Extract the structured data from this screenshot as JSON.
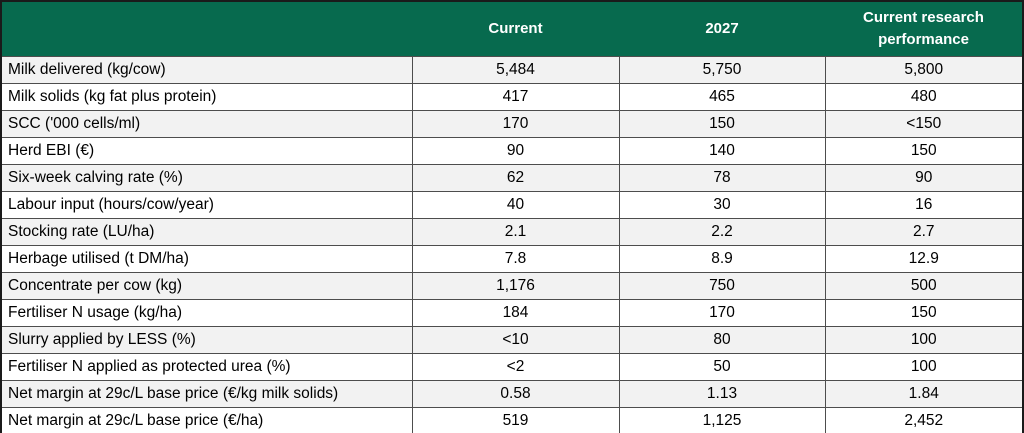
{
  "table": {
    "columns": [
      {
        "label": ""
      },
      {
        "label": "Current"
      },
      {
        "label": "2027"
      },
      {
        "label": "Current research performance"
      }
    ],
    "rows": [
      {
        "label": "Milk delivered (kg/cow)",
        "values": [
          "5,484",
          "5,750",
          "5,800"
        ]
      },
      {
        "label": "Milk solids (kg fat plus protein)",
        "values": [
          "417",
          "465",
          "480"
        ]
      },
      {
        "label": "SCC ('000 cells/ml)",
        "values": [
          "170",
          "150",
          "<150"
        ]
      },
      {
        "label": "Herd EBI (€)",
        "values": [
          "90",
          "140",
          "150"
        ]
      },
      {
        "label": "Six-week calving rate (%)",
        "values": [
          "62",
          "78",
          "90"
        ]
      },
      {
        "label": "Labour input (hours/cow/year)",
        "values": [
          "40",
          "30",
          "16"
        ]
      },
      {
        "label": "Stocking rate (LU/ha)",
        "values": [
          "2.1",
          "2.2",
          "2.7"
        ]
      },
      {
        "label": "Herbage utilised (t DM/ha)",
        "values": [
          "7.8",
          "8.9",
          "12.9"
        ]
      },
      {
        "label": "Concentrate per cow (kg)",
        "values": [
          "1,176",
          "750",
          "500"
        ]
      },
      {
        "label": "Fertiliser N usage (kg/ha)",
        "values": [
          "184",
          "170",
          "150"
        ]
      },
      {
        "label": "Slurry applied by LESS (%)",
        "values": [
          "<10",
          "80",
          "100"
        ]
      },
      {
        "label": "Fertiliser N applied as protected urea (%)",
        "values": [
          "<2",
          "50",
          "100"
        ]
      },
      {
        "label": "Net margin at 29c/L base price (€/kg milk solids)",
        "values": [
          "0.58",
          "1.13",
          "1.84"
        ]
      },
      {
        "label": "Net margin at 29c/L base price (€/ha)",
        "values": [
          "519",
          "1,125",
          "2,452"
        ]
      }
    ]
  },
  "colors": {
    "header_bg": "#076a4e",
    "header_text": "#ffffff",
    "row_band": "#f2f2f2",
    "row_white": "#ffffff",
    "border_inner": "#4d4d4d",
    "border_outer": "#1a1a1a",
    "text": "#000000"
  }
}
